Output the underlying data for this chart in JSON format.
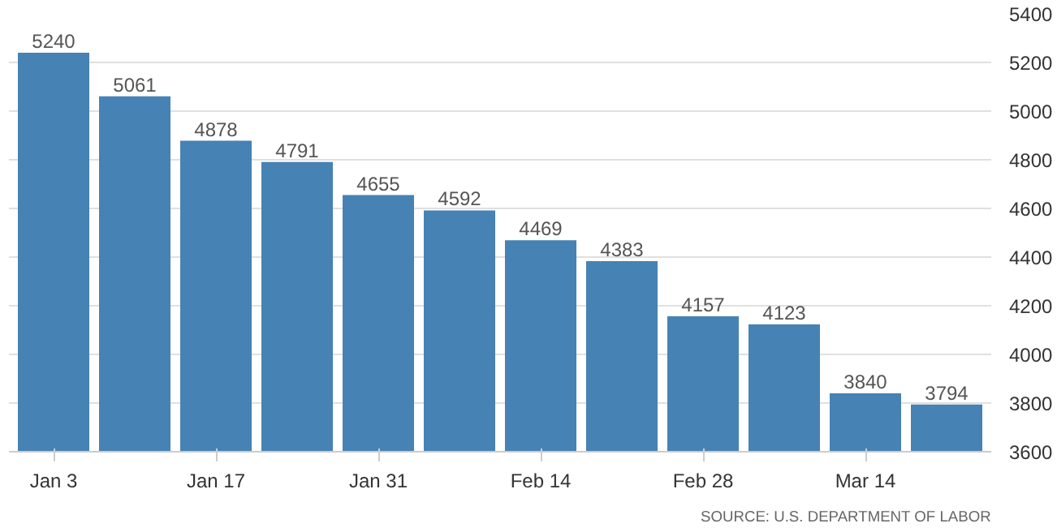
{
  "chart_data": {
    "type": "bar",
    "categories": [
      "Jan 3",
      null,
      "Jan 17",
      null,
      "Jan 31",
      null,
      "Feb 14",
      null,
      "Feb 28",
      null,
      "Mar 14",
      null
    ],
    "values": [
      5240,
      5061,
      4878,
      4791,
      4655,
      4592,
      4469,
      4383,
      4157,
      4123,
      3840,
      3794
    ],
    "color": "#4682b4",
    "ylim": [
      3600,
      5400
    ],
    "yticks": [
      3600,
      3800,
      4000,
      4200,
      4400,
      4600,
      4800,
      5000,
      5200,
      5400
    ],
    "grid": "y",
    "data_labels": true,
    "annotations": [
      "SOURCE: U.S. DEPARTMENT OF LABOR"
    ]
  }
}
